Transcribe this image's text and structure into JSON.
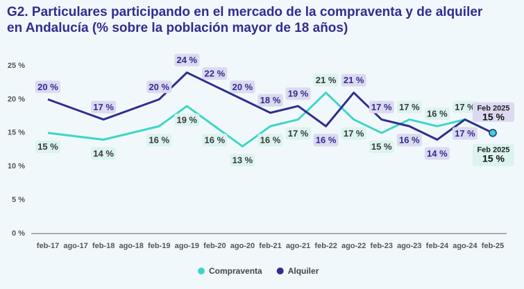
{
  "chart_data": {
    "type": "line",
    "title": "G2. Particulares participando en el mercado de la compraventa y de alquiler en Andalucía (% sobre la población mayor de 18 años)",
    "categories": [
      "feb-17",
      "ago-17",
      "feb-18",
      "ago-18",
      "feb-19",
      "ago-19",
      "feb-20",
      "ago-20",
      "feb-21",
      "ago-21",
      "feb-22",
      "ago-22",
      "feb-23",
      "ago-23",
      "feb-24",
      "ago-24",
      "feb-25"
    ],
    "series": [
      {
        "name": "Compraventa",
        "color": "#3dd6c6",
        "values": [
          15,
          null,
          14,
          null,
          16,
          19,
          16,
          13,
          16,
          17,
          21,
          17,
          15,
          17,
          16,
          17,
          15
        ],
        "value_labels": [
          "15 %",
          null,
          "14 %",
          null,
          "16 %",
          "19 %",
          "16 %",
          "13 %",
          "16 %",
          "17 %",
          "21 %",
          "17 %",
          "15 %",
          "17 %",
          "16 %",
          "17 %",
          "15 %"
        ],
        "end_label": "Feb 2025"
      },
      {
        "name": "Alquiler",
        "color": "#2e2e8f",
        "values": [
          20,
          null,
          17,
          null,
          20,
          24,
          22,
          20,
          18,
          19,
          16,
          21,
          17,
          16,
          14,
          17,
          15
        ],
        "value_labels": [
          "20 %",
          null,
          "17 %",
          null,
          "20 %",
          "24 %",
          "22 %",
          "20 %",
          "18 %",
          "19 %",
          "16 %",
          "21 %",
          "17 %",
          "16 %",
          "14 %",
          "17 %",
          "15 %"
        ],
        "end_label": "Feb 2025"
      }
    ],
    "ylim": [
      0,
      25
    ],
    "yticks": [
      {
        "value": 0,
        "label": "0 %"
      },
      {
        "value": 5,
        "label": "5 %"
      },
      {
        "value": 10,
        "label": "10 %"
      },
      {
        "value": 15,
        "label": "15 %"
      },
      {
        "value": 20,
        "label": "20 %"
      },
      {
        "value": 25,
        "label": "25 %"
      }
    ],
    "connect_gaps": true,
    "grid": false,
    "legend": "bottom"
  }
}
